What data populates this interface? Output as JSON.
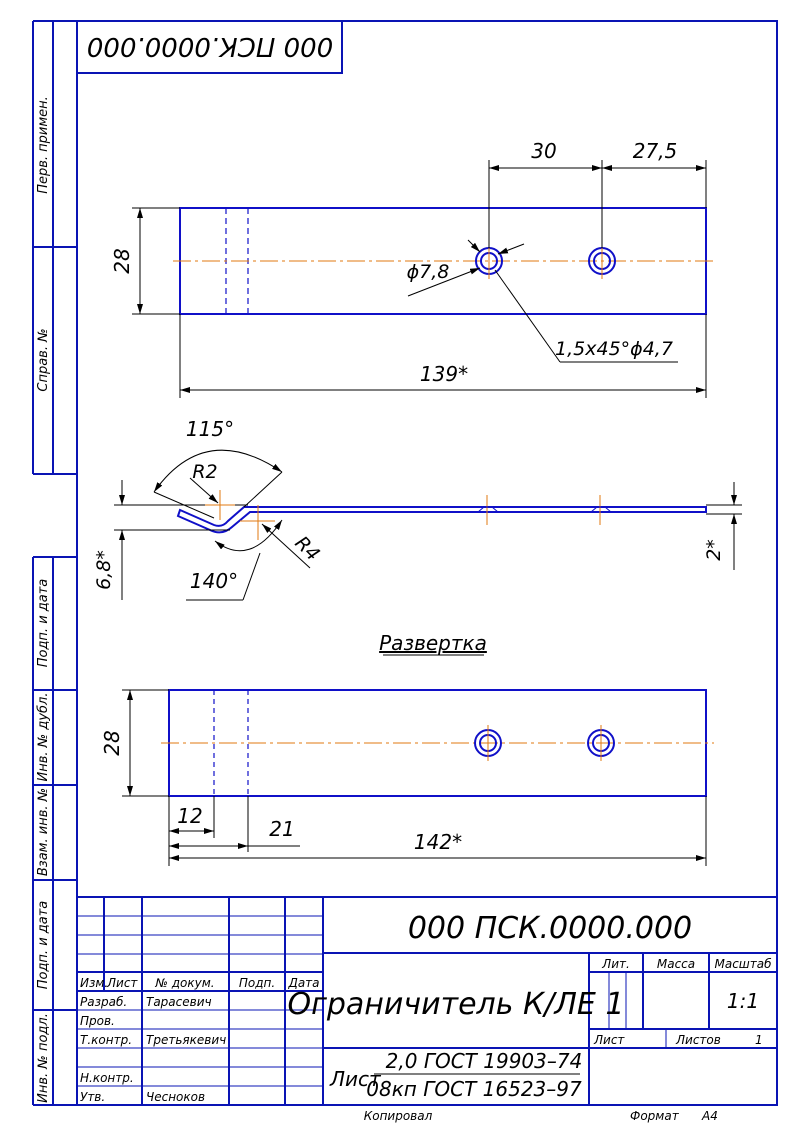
{
  "designation_top": "000 ПСК.0000.000",
  "side_labels": {
    "perv_primen": "Перв. примен.",
    "sprav_no": "Справ. №",
    "podp_data_1": "Подп. и дата",
    "inv_dubl": "Инв. № дубл.",
    "vzam_inv": "Взам. инв. №",
    "podp_data_2": "Подп. и дата",
    "inv_podl": "Инв. № подл."
  },
  "dimensions": {
    "view1_30": "30",
    "view1_27_5": "27,5",
    "view1_28": "28",
    "view1_hole": "ϕ7,8",
    "view1_chamfer": "1,5х45°ϕ4,7",
    "view1_139": "139*",
    "bend_115": "115°",
    "bend_r2": "R2",
    "bend_r4": "R4",
    "bend_140": "140°",
    "bend_6_8": "6,8*",
    "bend_2": "2*",
    "view3_28": "28",
    "view3_12": "12",
    "view3_21": "21",
    "view3_142": "142*"
  },
  "razvertka": "Развертка",
  "title_block": {
    "designation": "000 ПСК.0000.000",
    "name": "Ограничитель К/ЛЕ 1",
    "headers": {
      "izm": "Изм.",
      "list": "Лист",
      "doc_no": "№ докум.",
      "podp": "Подп.",
      "data": "Дата"
    },
    "roles": {
      "razrab": "Разраб.",
      "prov": "Пров.",
      "tkontr": "Т.контр.",
      "nkontr": "Н.контр.",
      "utv": "Утв."
    },
    "names": {
      "razrab": "Тарасевич",
      "tkontr": "Третьякевич",
      "utv": "Чесноков"
    },
    "lit": "Лит.",
    "massa": "Масса",
    "masshtab": "Масштаб",
    "scale": "1:1",
    "sheet_label": "Лист",
    "sheets_label": "Листов",
    "sheets_count": "1",
    "material_prefix": "Лист",
    "material_top": "2,0 ГОСТ 19903–74",
    "material_bottom": "08кп ГОСТ 16523–97"
  },
  "footer": {
    "kopiroval": "Копировал",
    "format_label": "Формат",
    "format_value": "А4"
  }
}
